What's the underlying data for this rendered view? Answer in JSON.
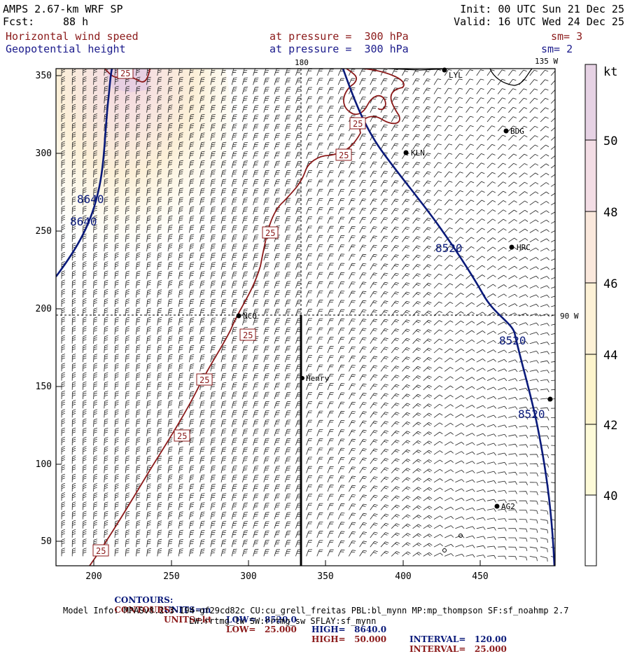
{
  "header": {
    "model": "AMPS 2.67-km WRF SP",
    "forecast_label": "Fcst:",
    "forecast_hours": "88 h",
    "init": "Init: 00 UTC Sun 21 Dec 25",
    "valid": "Valid: 16 UTC Wed 24 Dec 25",
    "field1_name": "Horizontal wind speed",
    "field1_level": "at pressure =  300 hPa",
    "field1_sm": "sm= 3",
    "field2_name": "Geopotential height",
    "field2_level": "at pressure =  300 hPa",
    "field2_sm": "sm= 2"
  },
  "map": {
    "x_ticks": [
      "200",
      "250",
      "300",
      "350",
      "400",
      "450"
    ],
    "y_ticks": [
      "50",
      "100",
      "150",
      "200",
      "250",
      "300",
      "350"
    ],
    "meridian_labels": {
      "m180": "180",
      "m135w": "135 W",
      "m90w": "90 W"
    },
    "stations": [
      {
        "id": "LYL",
        "label": "LYL"
      },
      {
        "id": "BDG",
        "label": "BDG"
      },
      {
        "id": "KLN",
        "label": "KLN"
      },
      {
        "id": "HRC",
        "label": "HRC"
      },
      {
        "id": "NCO",
        "label": "NCO"
      },
      {
        "id": "Henry",
        "label": "Henry"
      },
      {
        "id": "AG2",
        "label": "AG2"
      },
      {
        "id": "E",
        "label": ""
      }
    ],
    "height_contour_labels": [
      "8640",
      "8640",
      "8520",
      "8520",
      "8520"
    ],
    "speed_contour_labels": [
      "25",
      "25",
      "25",
      "25",
      "25",
      "25",
      "25",
      "25"
    ],
    "colors": {
      "height_contour": "#0a1a7a",
      "speed_contour": "#8b1a1a",
      "coast": "#000000"
    }
  },
  "colorbar": {
    "unit": "kt",
    "tick_labels": [
      "50",
      "48",
      "46",
      "44",
      "42",
      "40"
    ],
    "bands": [
      {
        "level": "50+",
        "color": "#e6d2e4"
      },
      {
        "level": "48-50",
        "color": "#f3dde5"
      },
      {
        "level": "46-48",
        "color": "#fae8dc"
      },
      {
        "level": "44-46",
        "color": "#fdf1d6"
      },
      {
        "level": "42-44",
        "color": "#fdf4cc"
      },
      {
        "level": "40-42",
        "color": "#fdfad8"
      },
      {
        "level": "<40",
        "color": "#ffffff"
      }
    ]
  },
  "footer": {
    "line1": {
      "label": "CONTOURS:",
      "units": "UNITS=m",
      "low": "LOW=   8520.0",
      "high": "HIGH=   8640.0",
      "interval": "INTERVAL=   120.00"
    },
    "line2": {
      "label": "CONTOURS:",
      "units": "UNITS=kt",
      "low": "LOW=   25.000",
      "high": "HIGH=   50.000",
      "interval": "INTERVAL=   25.000"
    },
    "model_info1": "Model Info: MPASv8.2.3-194-gf29cd82c CU:cu_grell_freitas PBL:bl_mynn MP:mp_thompson SF:sf_noahmp 2.7",
    "model_info2": "LW:rrtmg_lw SW:rrtmg_sw SFLAY:sf_mynn"
  }
}
